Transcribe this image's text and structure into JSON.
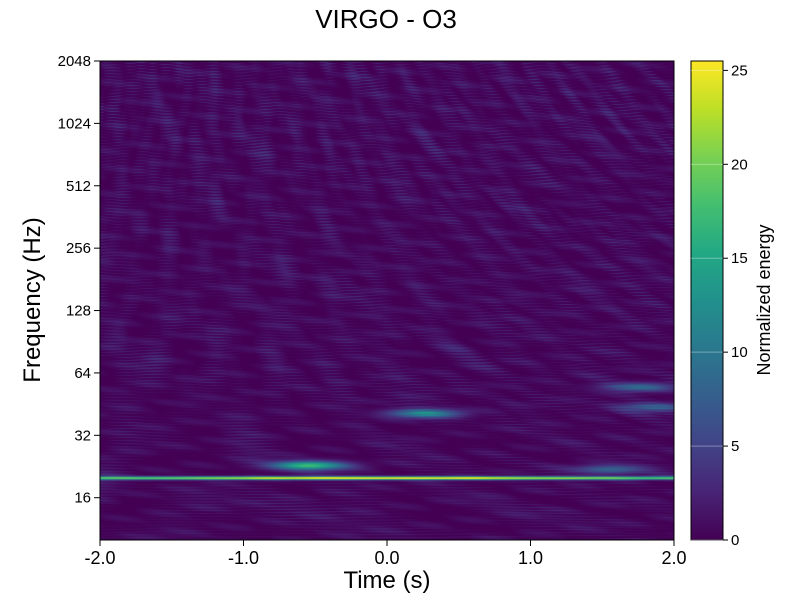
{
  "chart_data": {
    "type": "heatmap",
    "title": "VIRGO - O3",
    "xlabel": "Time (s)",
    "ylabel": "Frequency (Hz)",
    "xlim": [
      -2.0,
      2.0
    ],
    "ylim": [
      10,
      2048
    ],
    "yscale": "log2",
    "x_ticks": [
      -2.0,
      -1.0,
      0.0,
      1.0,
      2.0
    ],
    "x_tick_labels": [
      "-2.0",
      "-1.0",
      "0.0",
      "1.0",
      "2.0"
    ],
    "y_ticks": [
      16,
      32,
      64,
      128,
      256,
      512,
      1024,
      2048
    ],
    "y_tick_labels": [
      "16",
      "32",
      "64",
      "128",
      "256",
      "512",
      "1024",
      "2048"
    ],
    "colorbar": {
      "label": "Normalized energy",
      "range": [
        0,
        25.5
      ],
      "ticks": [
        0,
        5,
        10,
        15,
        20,
        25
      ],
      "tick_labels": [
        "0",
        "5",
        "10",
        "15",
        "20",
        "25"
      ],
      "colormap": "viridis"
    },
    "features": [
      {
        "desc": "continuous narrow line",
        "freq_hz": 20,
        "t_range": [
          -2.0,
          2.0
        ],
        "peak_energy": 25.5
      },
      {
        "desc": "blob",
        "freq_hz": 23,
        "t_center": -0.55,
        "energy": 17
      },
      {
        "desc": "blob",
        "freq_hz": 41,
        "t_center": 0.25,
        "energy": 11
      },
      {
        "desc": "blob",
        "freq_hz": 22,
        "t_center": 1.55,
        "energy": 8
      },
      {
        "desc": "blob",
        "freq_hz": 55,
        "t_center": 1.75,
        "energy": 8
      },
      {
        "desc": "blob",
        "freq_hz": 44,
        "t_center": 1.85,
        "energy": 7
      }
    ]
  }
}
